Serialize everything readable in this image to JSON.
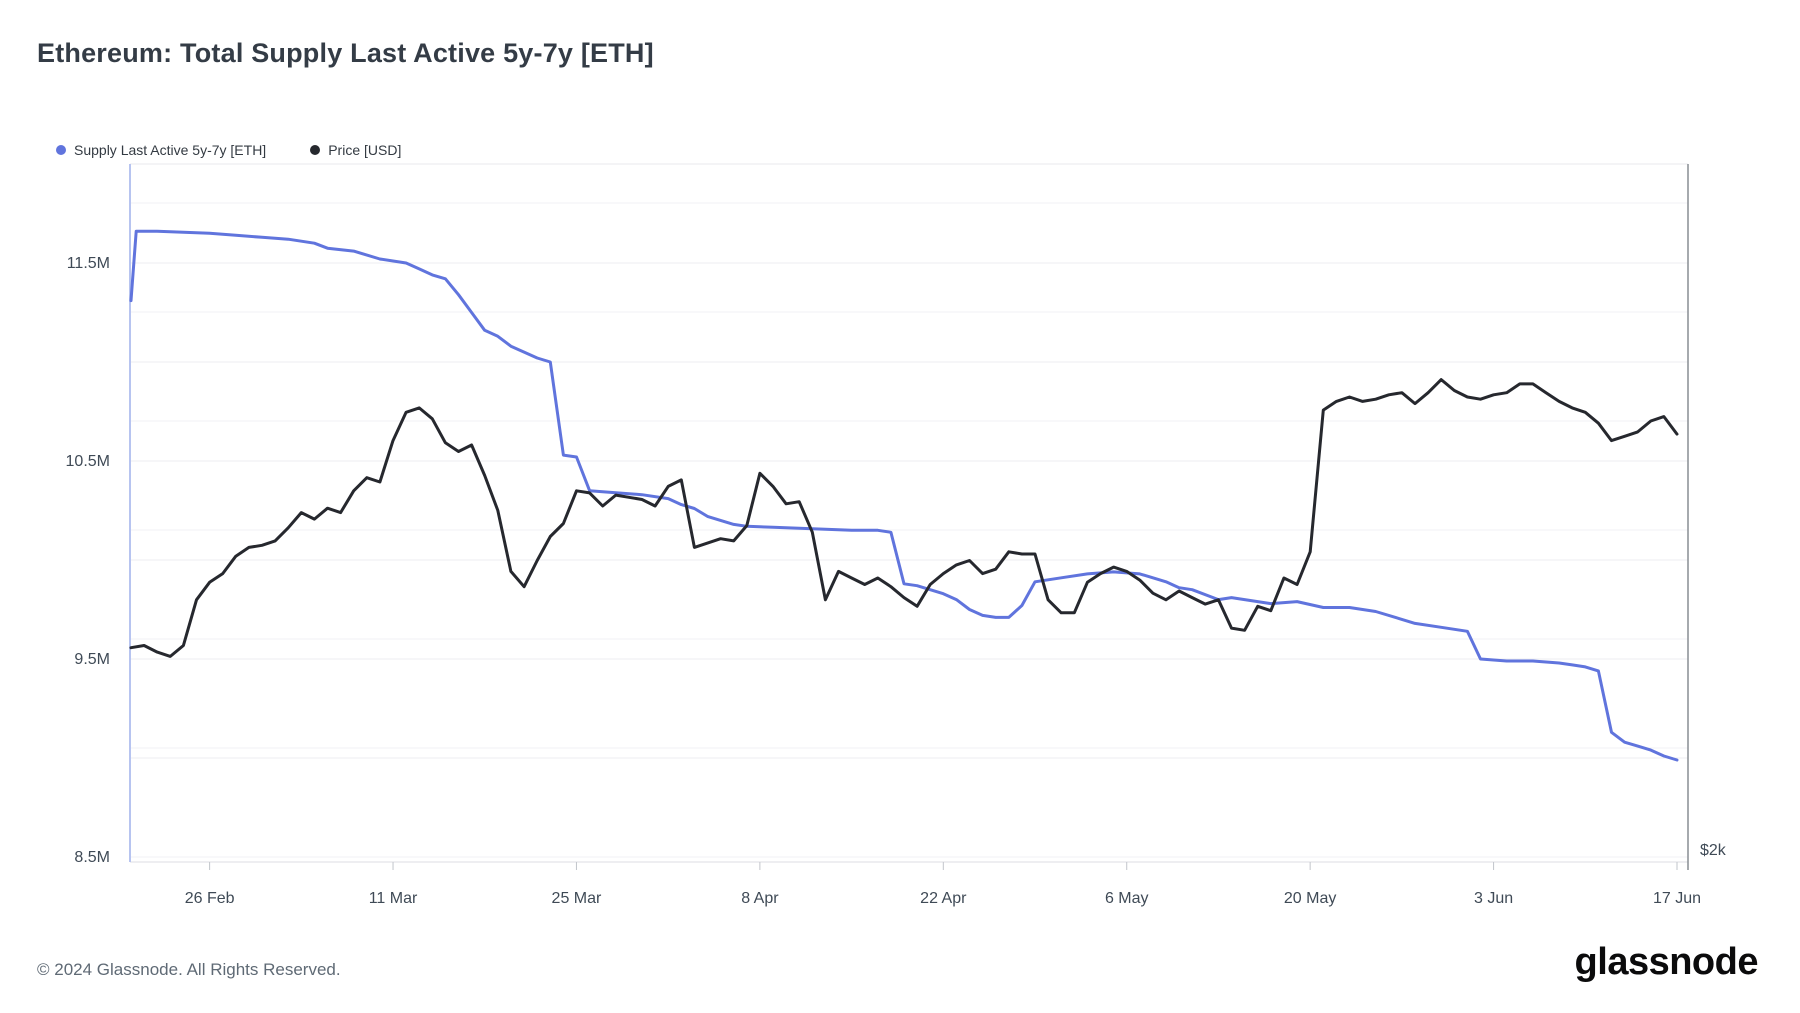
{
  "header": {
    "title": "Ethereum: Total Supply Last Active 5y-7y [ETH]"
  },
  "legend": [
    {
      "label": "Supply Last Active 5y-7y [ETH]",
      "color": "#6074dd"
    },
    {
      "label": "Price [USD]",
      "color": "#26282e"
    }
  ],
  "footer": {
    "copyright": "© 2024 Glassnode. All Rights Reserved.",
    "brand": "glassnode"
  },
  "chart_data": {
    "type": "line",
    "title": "Ethereum: Total Supply Last Active 5y-7y [ETH]",
    "x_start_date": "2024-02-20",
    "x_end_date": "2024-06-17",
    "x_tick_labels": [
      "26 Feb",
      "11 Mar",
      "25 Mar",
      "8 Apr",
      "22 Apr",
      "6 May",
      "20 May",
      "3 Jun",
      "17 Jun"
    ],
    "x_tick_days": [
      6,
      20,
      34,
      48,
      62,
      76,
      90,
      104,
      118
    ],
    "grid": "horizontal-only",
    "legend_position": "top-left",
    "left_axis": {
      "unit": "M ETH",
      "tick_labels": [
        "11.5M",
        "10.5M",
        "9.5M",
        "8.5M"
      ],
      "tick_values": [
        11.5,
        10.5,
        9.5,
        8.5
      ],
      "grid_values": [
        11.5,
        11.0,
        10.5,
        10.0,
        9.5,
        9.0,
        8.5
      ],
      "range_shown": [
        8.43,
        12.0
      ]
    },
    "right_axis": {
      "unit": "USD (thousands)",
      "tick_labels": [
        "$2k"
      ],
      "tick_values": [
        2
      ],
      "grid_values": [
        5.0,
        4.5,
        4.0,
        3.5,
        3.0,
        2.5,
        2.0
      ],
      "range_shown": [
        2.02,
        5.18
      ]
    },
    "series": [
      {
        "name": "Supply Last Active 5y-7y [ETH]",
        "axis": "left",
        "color": "#6074dd",
        "unit": "M ETH",
        "points": [
          [
            0,
            11.31
          ],
          [
            0.4,
            11.66
          ],
          [
            2,
            11.66
          ],
          [
            4,
            11.655
          ],
          [
            6,
            11.65
          ],
          [
            8,
            11.64
          ],
          [
            10,
            11.63
          ],
          [
            12,
            11.62
          ],
          [
            14,
            11.6
          ],
          [
            15,
            11.575
          ],
          [
            17,
            11.56
          ],
          [
            19,
            11.52
          ],
          [
            21,
            11.5
          ],
          [
            22,
            11.47
          ],
          [
            23,
            11.44
          ],
          [
            24,
            11.42
          ],
          [
            25,
            11.34
          ],
          [
            26,
            11.25
          ],
          [
            27,
            11.16
          ],
          [
            28,
            11.13
          ],
          [
            29,
            11.08
          ],
          [
            30,
            11.05
          ],
          [
            31,
            11.02
          ],
          [
            32,
            11.0
          ],
          [
            33,
            10.53
          ],
          [
            34,
            10.52
          ],
          [
            35,
            10.35
          ],
          [
            37,
            10.34
          ],
          [
            39,
            10.33
          ],
          [
            41,
            10.31
          ],
          [
            42,
            10.28
          ],
          [
            43,
            10.26
          ],
          [
            44,
            10.22
          ],
          [
            45,
            10.2
          ],
          [
            46,
            10.18
          ],
          [
            47,
            10.17
          ],
          [
            49,
            10.165
          ],
          [
            51,
            10.16
          ],
          [
            53,
            10.155
          ],
          [
            55,
            10.15
          ],
          [
            57,
            10.15
          ],
          [
            58,
            10.14
          ],
          [
            59,
            9.88
          ],
          [
            60,
            9.87
          ],
          [
            61,
            9.85
          ],
          [
            62,
            9.83
          ],
          [
            63,
            9.8
          ],
          [
            64,
            9.75
          ],
          [
            65,
            9.72
          ],
          [
            66,
            9.71
          ],
          [
            67,
            9.71
          ],
          [
            68,
            9.77
          ],
          [
            69,
            9.89
          ],
          [
            70,
            9.9
          ],
          [
            71,
            9.91
          ],
          [
            73,
            9.93
          ],
          [
            75,
            9.94
          ],
          [
            77,
            9.93
          ],
          [
            78,
            9.91
          ],
          [
            79,
            9.89
          ],
          [
            80,
            9.86
          ],
          [
            81,
            9.85
          ],
          [
            83,
            9.8
          ],
          [
            84,
            9.81
          ],
          [
            85,
            9.8
          ],
          [
            87,
            9.78
          ],
          [
            89,
            9.79
          ],
          [
            91,
            9.76
          ],
          [
            93,
            9.76
          ],
          [
            95,
            9.74
          ],
          [
            97,
            9.7
          ],
          [
            98,
            9.68
          ],
          [
            100,
            9.66
          ],
          [
            101,
            9.65
          ],
          [
            102,
            9.64
          ],
          [
            103,
            9.5
          ],
          [
            105,
            9.49
          ],
          [
            107,
            9.49
          ],
          [
            109,
            9.48
          ],
          [
            110,
            9.47
          ],
          [
            111,
            9.46
          ],
          [
            112,
            9.44
          ],
          [
            113,
            9.13
          ],
          [
            114,
            9.08
          ],
          [
            115,
            9.06
          ],
          [
            116,
            9.04
          ],
          [
            117,
            9.01
          ],
          [
            118,
            8.99
          ]
        ]
      },
      {
        "name": "Price [USD]",
        "axis": "right",
        "color": "#26282e",
        "unit": "USD (thousands)",
        "points": [
          [
            0,
            2.96
          ],
          [
            1,
            2.97
          ],
          [
            2,
            2.94
          ],
          [
            3,
            2.92
          ],
          [
            4,
            2.97
          ],
          [
            5,
            3.18
          ],
          [
            6,
            3.26
          ],
          [
            7,
            3.3
          ],
          [
            8,
            3.38
          ],
          [
            9,
            3.42
          ],
          [
            10,
            3.43
          ],
          [
            11,
            3.45
          ],
          [
            12,
            3.51
          ],
          [
            13,
            3.58
          ],
          [
            14,
            3.55
          ],
          [
            15,
            3.6
          ],
          [
            16,
            3.58
          ],
          [
            17,
            3.68
          ],
          [
            18,
            3.74
          ],
          [
            19,
            3.72
          ],
          [
            20,
            3.91
          ],
          [
            21,
            4.04
          ],
          [
            22,
            4.06
          ],
          [
            23,
            4.01
          ],
          [
            24,
            3.9
          ],
          [
            25,
            3.86
          ],
          [
            26,
            3.89
          ],
          [
            27,
            3.75
          ],
          [
            28,
            3.59
          ],
          [
            29,
            3.31
          ],
          [
            30,
            3.24
          ],
          [
            31,
            3.36
          ],
          [
            32,
            3.47
          ],
          [
            33,
            3.53
          ],
          [
            34,
            3.68
          ],
          [
            35,
            3.67
          ],
          [
            36,
            3.61
          ],
          [
            37,
            3.66
          ],
          [
            38,
            3.65
          ],
          [
            39,
            3.64
          ],
          [
            40,
            3.61
          ],
          [
            41,
            3.7
          ],
          [
            42,
            3.73
          ],
          [
            43,
            3.42
          ],
          [
            44,
            3.44
          ],
          [
            45,
            3.46
          ],
          [
            46,
            3.45
          ],
          [
            47,
            3.52
          ],
          [
            48,
            3.76
          ],
          [
            49,
            3.7
          ],
          [
            50,
            3.62
          ],
          [
            51,
            3.63
          ],
          [
            52,
            3.49
          ],
          [
            53,
            3.18
          ],
          [
            54,
            3.31
          ],
          [
            55,
            3.28
          ],
          [
            56,
            3.25
          ],
          [
            57,
            3.28
          ],
          [
            58,
            3.24
          ],
          [
            59,
            3.19
          ],
          [
            60,
            3.15
          ],
          [
            61,
            3.25
          ],
          [
            62,
            3.3
          ],
          [
            63,
            3.34
          ],
          [
            64,
            3.36
          ],
          [
            65,
            3.3
          ],
          [
            66,
            3.32
          ],
          [
            67,
            3.4
          ],
          [
            68,
            3.39
          ],
          [
            69,
            3.39
          ],
          [
            70,
            3.18
          ],
          [
            71,
            3.12
          ],
          [
            72,
            3.12
          ],
          [
            73,
            3.26
          ],
          [
            74,
            3.3
          ],
          [
            75,
            3.33
          ],
          [
            76,
            3.31
          ],
          [
            77,
            3.27
          ],
          [
            78,
            3.21
          ],
          [
            79,
            3.18
          ],
          [
            80,
            3.22
          ],
          [
            81,
            3.19
          ],
          [
            82,
            3.16
          ],
          [
            83,
            3.18
          ],
          [
            84,
            3.05
          ],
          [
            85,
            3.04
          ],
          [
            86,
            3.15
          ],
          [
            87,
            3.13
          ],
          [
            88,
            3.28
          ],
          [
            89,
            3.25
          ],
          [
            90,
            3.4
          ],
          [
            91,
            4.05
          ],
          [
            92,
            4.09
          ],
          [
            93,
            4.11
          ],
          [
            94,
            4.09
          ],
          [
            95,
            4.1
          ],
          [
            96,
            4.12
          ],
          [
            97,
            4.13
          ],
          [
            98,
            4.08
          ],
          [
            99,
            4.13
          ],
          [
            100,
            4.19
          ],
          [
            101,
            4.14
          ],
          [
            102,
            4.11
          ],
          [
            103,
            4.1
          ],
          [
            104,
            4.12
          ],
          [
            105,
            4.13
          ],
          [
            106,
            4.17
          ],
          [
            107,
            4.17
          ],
          [
            108,
            4.13
          ],
          [
            109,
            4.09
          ],
          [
            110,
            4.06
          ],
          [
            111,
            4.04
          ],
          [
            112,
            3.99
          ],
          [
            113,
            3.91
          ],
          [
            114,
            3.93
          ],
          [
            115,
            3.95
          ],
          [
            116,
            4.0
          ],
          [
            117,
            4.02
          ],
          [
            118,
            3.94
          ]
        ]
      }
    ]
  }
}
